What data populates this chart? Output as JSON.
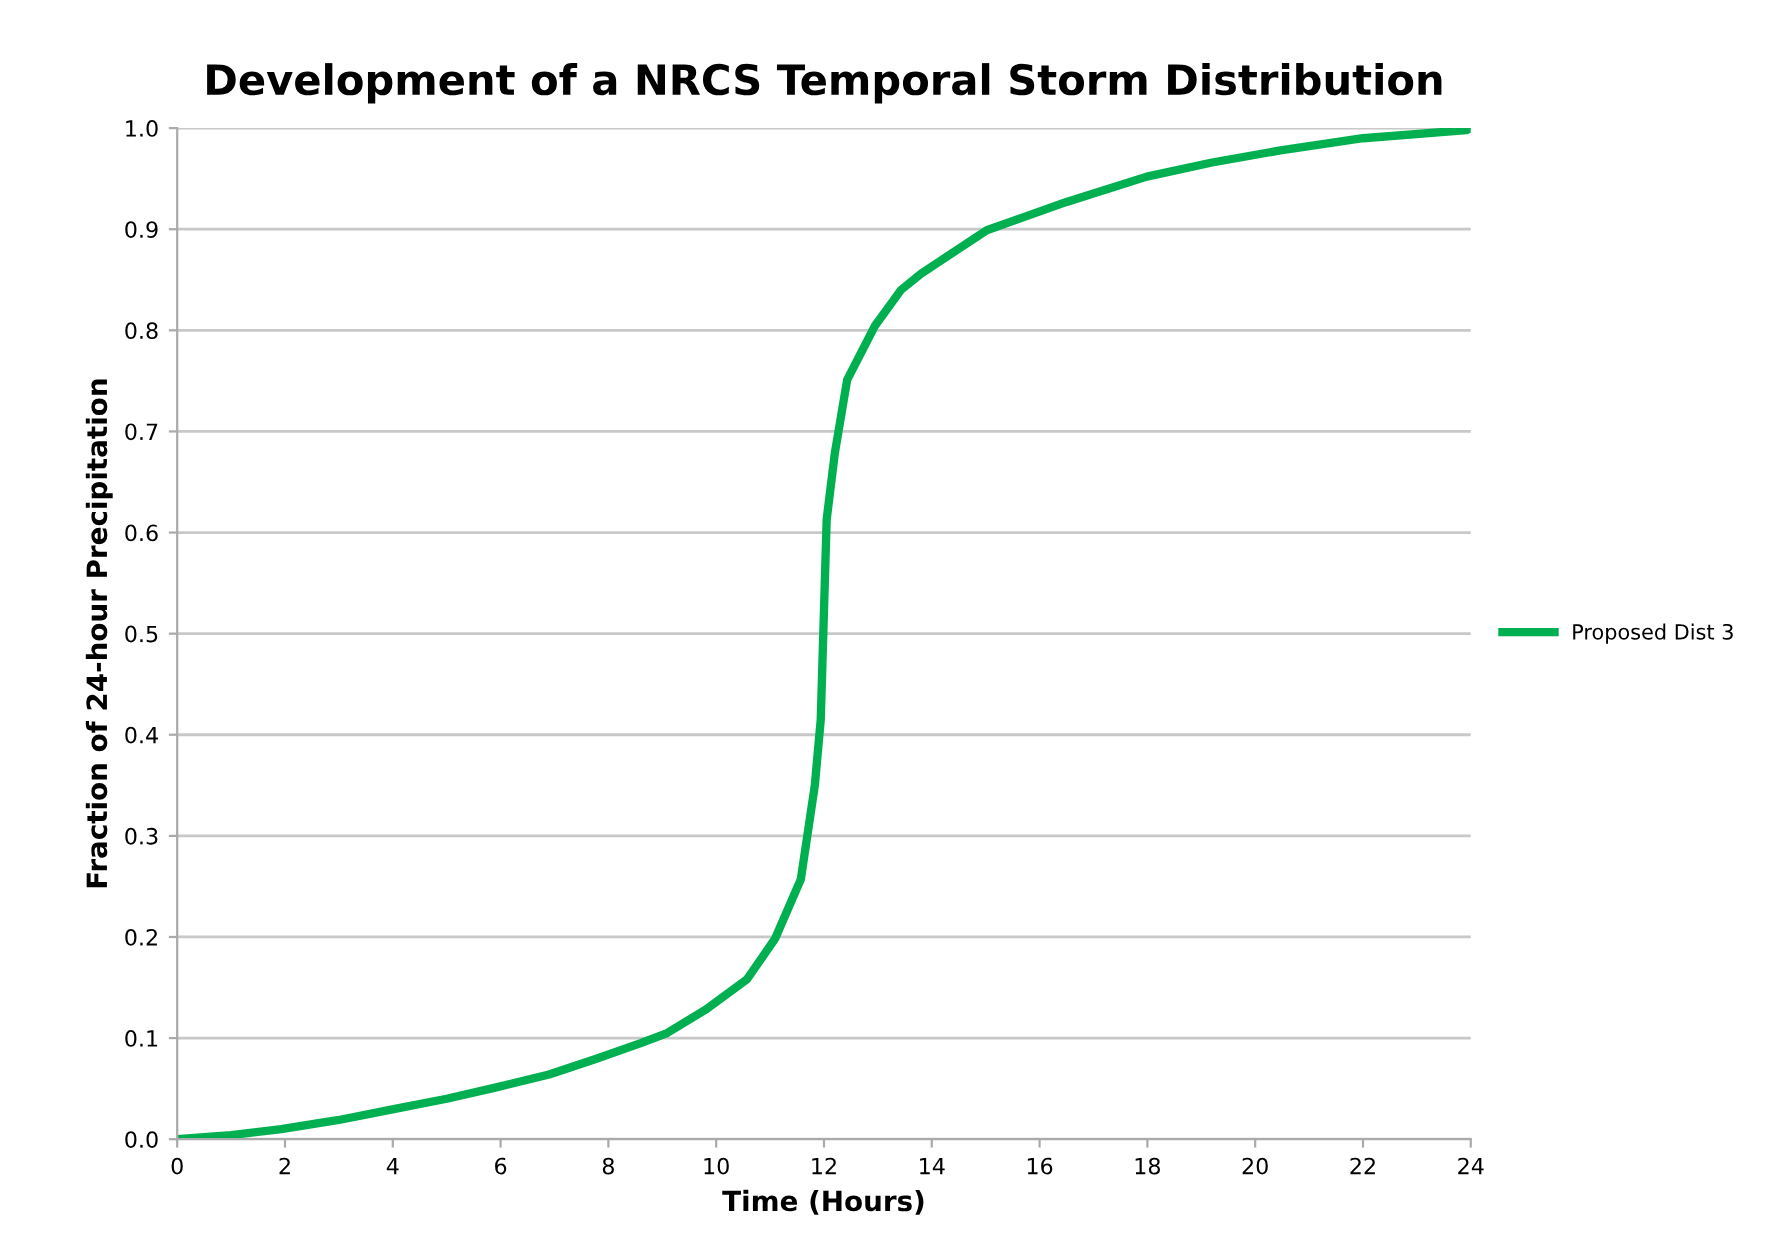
{
  "chart_data": {
    "type": "line",
    "title": "Development of a NRCS Temporal Storm Distribution",
    "xlabel": "Time (Hours)",
    "ylabel": "Fraction of 24-hour Precipitation",
    "xlim": [
      0,
      24
    ],
    "xticks": [
      0,
      2,
      4,
      6,
      8,
      10,
      12,
      14,
      16,
      18,
      20,
      22,
      24
    ],
    "ylim": [
      0.0,
      1.0
    ],
    "yticks": [
      {
        "value": 0,
        "label": "0.0"
      },
      0.1,
      0.2,
      0.3,
      0.4,
      0.5,
      0.6,
      0.7,
      0.8,
      0.9,
      {
        "value": 1,
        "label": "1.0"
      }
    ],
    "grid": "y",
    "legend": "right",
    "marker": "none",
    "line_style": "solid",
    "series": [
      {
        "name": "Proposed Dist 3",
        "color": "#00b050",
        "x": [
          0,
          1.0,
          1.93,
          3.0,
          4.04,
          5.0,
          5.9,
          6.9,
          7.75,
          8.6,
          9.09,
          9.8,
          10.57,
          11.09,
          11.57,
          11.83,
          11.94,
          12.05,
          12.2,
          12.43,
          12.94,
          13.43,
          13.8,
          15.02,
          16.5,
          17.99,
          19.2,
          20.47,
          22.0,
          23.92,
          24
        ],
        "values": [
          0,
          0.004,
          0.01,
          0.019,
          0.03,
          0.04,
          0.051,
          0.064,
          0.079,
          0.095,
          0.105,
          0.128,
          0.158,
          0.198,
          0.257,
          0.35,
          0.415,
          0.613,
          0.678,
          0.751,
          0.804,
          0.84,
          0.856,
          0.899,
          0.927,
          0.952,
          0.966,
          0.978,
          0.99,
          0.998,
          1.0
        ]
      }
    ]
  }
}
